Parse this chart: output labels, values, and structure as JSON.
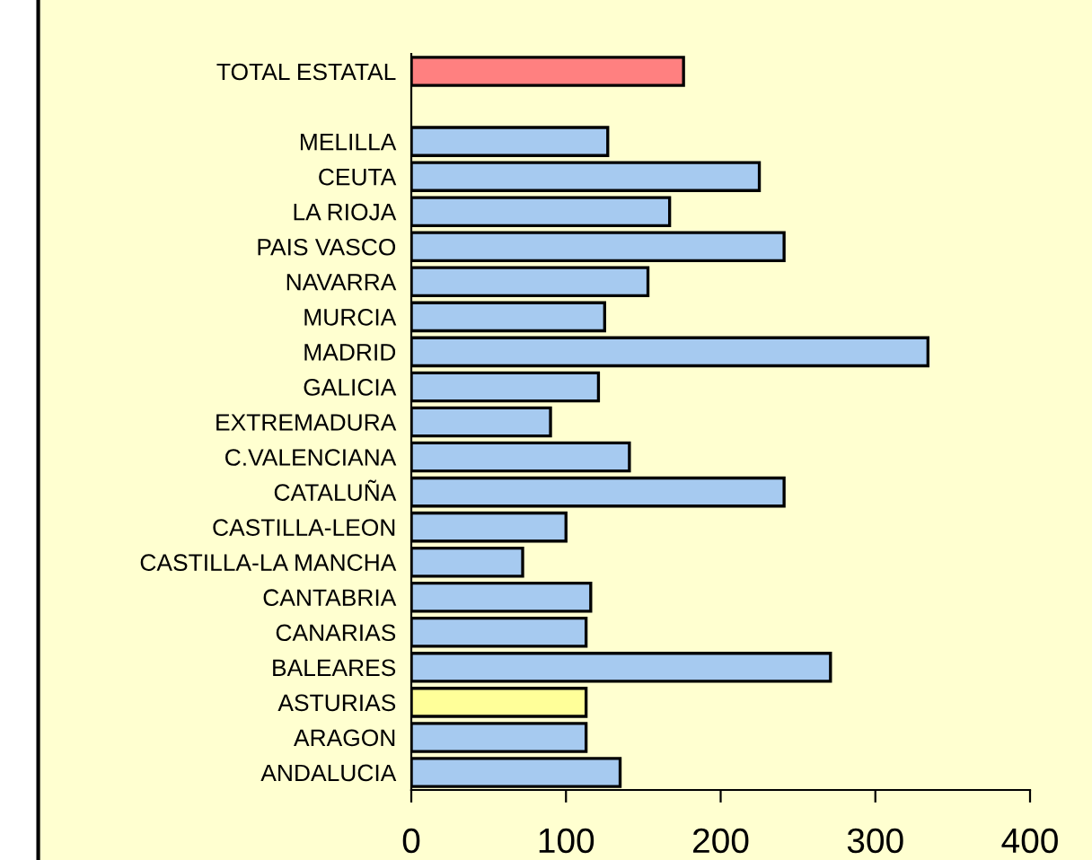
{
  "chart_data": {
    "type": "bar",
    "orientation": "horizontal",
    "categories": [
      "TOTAL ESTATAL",
      null,
      "MELILLA",
      "CEUTA",
      "LA RIOJA",
      "PAIS VASCO",
      "NAVARRA",
      "MURCIA",
      "MADRID",
      "GALICIA",
      "EXTREMADURA",
      "C.VALENCIANA",
      "CATALUÑA",
      "CASTILLA-LEON",
      "CASTILLA-LA MANCHA",
      "CANTABRIA",
      "CANARIAS",
      "BALEARES",
      "ASTURIAS",
      "ARAGON",
      "ANDALUCIA"
    ],
    "values": [
      176,
      null,
      127,
      225,
      167,
      241,
      153,
      125,
      334,
      121,
      90,
      141,
      241,
      100,
      72,
      116,
      113,
      271,
      113,
      113,
      135
    ],
    "colors": [
      "#ff8080",
      "#a6caf0",
      "#a6caf0",
      "#a6caf0",
      "#a6caf0",
      "#a6caf0",
      "#a6caf0",
      "#a6caf0",
      "#a6caf0",
      "#a6caf0",
      "#a6caf0",
      "#a6caf0",
      "#a6caf0",
      "#a6caf0",
      "#a6caf0",
      "#a6caf0",
      "#a6caf0",
      "#a6caf0",
      "#ffff99",
      "#a6caf0",
      "#a6caf0"
    ],
    "xlim": [
      0,
      400
    ],
    "xticks": [
      0,
      100,
      200,
      300,
      400
    ],
    "grid": false,
    "legend": false
  }
}
